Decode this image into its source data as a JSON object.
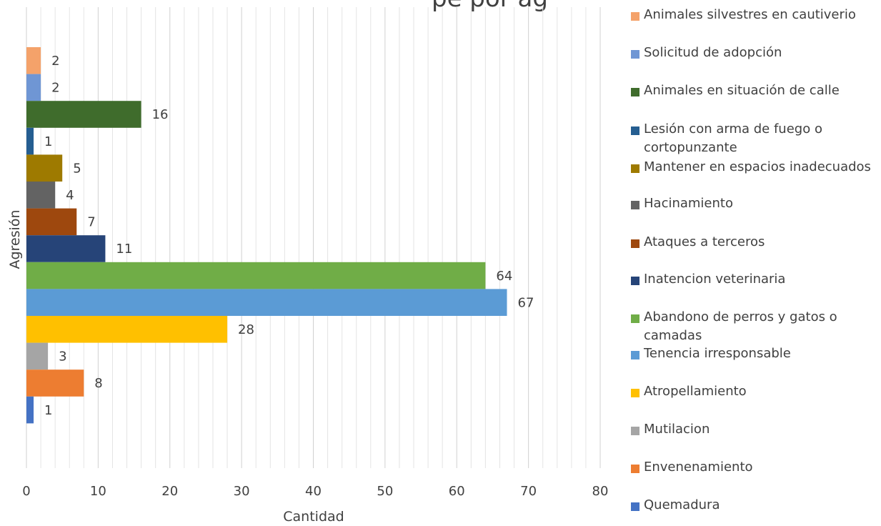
{
  "title_fragment": "pe por ag",
  "chart_data": {
    "type": "bar",
    "orientation": "horizontal",
    "xlabel": "Cantidad",
    "ylabel": "Agresión",
    "xlim": [
      0,
      80
    ],
    "x_ticks": [
      "0",
      "10",
      "20",
      "30",
      "40",
      "50",
      "60",
      "70",
      "80"
    ],
    "grid": true,
    "legend_position": "right",
    "series": [
      {
        "name": "Animales silvestres en cautiverio",
        "value": 2,
        "color": "#F4A26A"
      },
      {
        "name": "Solicitud de adopción",
        "value": 2,
        "color": "#6F96D4"
      },
      {
        "name": "Animales en situación de calle",
        "value": 16,
        "color": "#3F6C2C"
      },
      {
        "name": "Lesión con arma de fuego o cortopunzante",
        "value": 1,
        "color": "#255E91"
      },
      {
        "name": "Mantener en espacios inadecuados",
        "value": 5,
        "color": "#9E7A00"
      },
      {
        "name": "Hacinamiento",
        "value": 4,
        "color": "#636363"
      },
      {
        "name": "Ataques a terceros",
        "value": 7,
        "color": "#9E480E"
      },
      {
        "name": "Inatencion veterinaria",
        "value": 11,
        "color": "#264478"
      },
      {
        "name": "Abandono de perros y gatos o camadas",
        "value": 64,
        "color": "#70AD47"
      },
      {
        "name": "Tenencia irresponsable",
        "value": 67,
        "color": "#5B9BD5"
      },
      {
        "name": "Atropellamiento",
        "value": 28,
        "color": "#FFC000"
      },
      {
        "name": "Mutilacion",
        "value": 3,
        "color": "#A5A5A5"
      },
      {
        "name": "Envenenamiento",
        "value": 8,
        "color": "#ED7D31"
      },
      {
        "name": "Quemadura",
        "value": 1,
        "color": "#4472C4"
      }
    ]
  }
}
